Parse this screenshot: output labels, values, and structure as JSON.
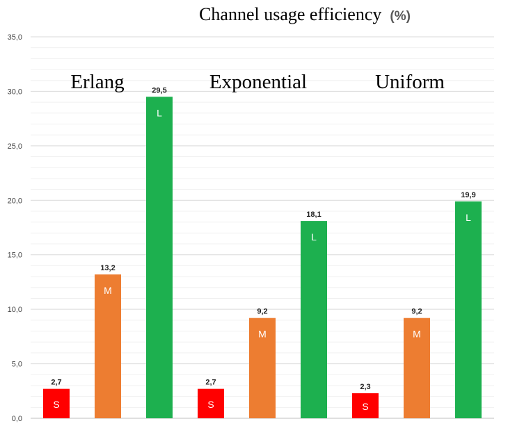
{
  "chart_data": {
    "type": "bar",
    "title": "Channel usage efficiency",
    "title_unit": "(%)",
    "ylim": [
      0,
      35
    ],
    "yticks": [
      "0,0",
      "5,0",
      "10,0",
      "15,0",
      "20,0",
      "25,0",
      "30,0",
      "35,0"
    ],
    "grid": true,
    "groups": [
      {
        "name": "Erlang",
        "bars": [
          {
            "label": "S",
            "value": 2.7,
            "text": "2,7",
            "color": "#ff0000"
          },
          {
            "label": "M",
            "value": 13.2,
            "text": "13,2",
            "color": "#ed7d31"
          },
          {
            "label": "L",
            "value": 29.5,
            "text": "29,5",
            "color": "#1db04f"
          }
        ]
      },
      {
        "name": "Exponential",
        "bars": [
          {
            "label": "S",
            "value": 2.7,
            "text": "2,7",
            "color": "#ff0000"
          },
          {
            "label": "M",
            "value": 9.2,
            "text": "9,2",
            "color": "#ed7d31"
          },
          {
            "label": "L",
            "value": 18.1,
            "text": "18,1",
            "color": "#1db04f"
          }
        ]
      },
      {
        "name": "Uniform",
        "bars": [
          {
            "label": "S",
            "value": 2.3,
            "text": "2,3",
            "color": "#ff0000"
          },
          {
            "label": "M",
            "value": 9.2,
            "text": "9,2",
            "color": "#ed7d31"
          },
          {
            "label": "L",
            "value": 19.9,
            "text": "19,9",
            "color": "#1db04f"
          }
        ]
      }
    ]
  }
}
